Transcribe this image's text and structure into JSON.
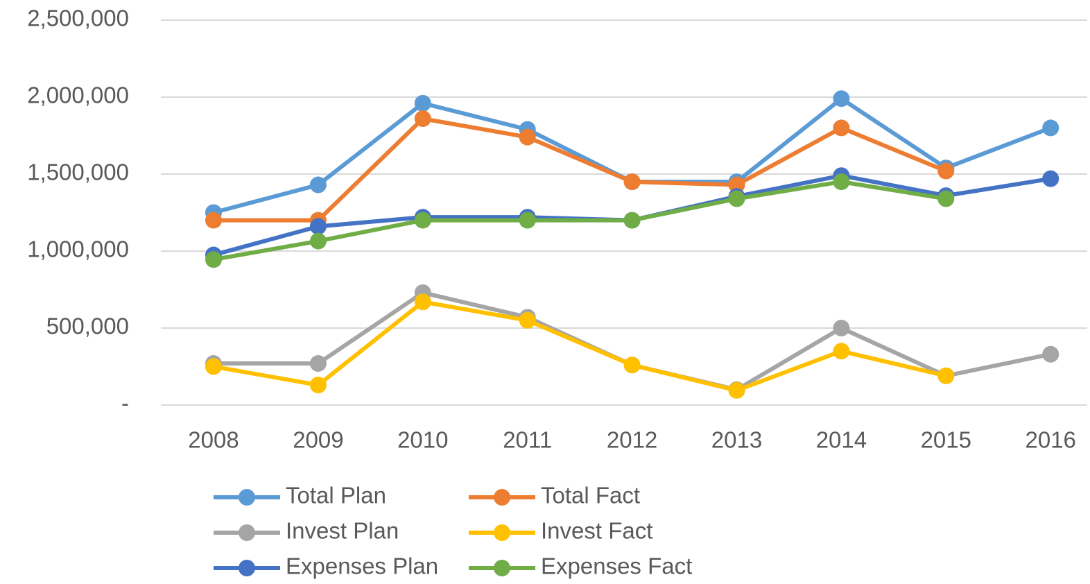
{
  "chart_data": {
    "type": "line",
    "categories": [
      "2008",
      "2009",
      "2010",
      "2011",
      "2012",
      "2013",
      "2014",
      "2015",
      "2016"
    ],
    "series": [
      {
        "name": "Total Plan",
        "color": "#5b9bd5",
        "values": [
          1250000,
          1430000,
          1960000,
          1790000,
          1450000,
          1450000,
          1990000,
          1540000,
          1800000
        ]
      },
      {
        "name": "Total Fact",
        "color": "#ed7d31",
        "values": [
          1200000,
          1200000,
          1860000,
          1740000,
          1450000,
          1430000,
          1800000,
          1520000,
          null
        ]
      },
      {
        "name": "Invest Plan",
        "color": "#a5a5a5",
        "values": [
          270000,
          270000,
          730000,
          570000,
          260000,
          100000,
          500000,
          190000,
          330000
        ]
      },
      {
        "name": "Invest Fact",
        "color": "#ffc000",
        "values": [
          250000,
          130000,
          670000,
          550000,
          260000,
          95000,
          350000,
          190000,
          null
        ]
      },
      {
        "name": "Expenses Plan",
        "color": "#4472c4",
        "values": [
          975000,
          1160000,
          1220000,
          1220000,
          1200000,
          1355000,
          1490000,
          1360000,
          1470000
        ]
      },
      {
        "name": "Expenses Fact",
        "color": "#70ad47",
        "values": [
          945000,
          1065000,
          1200000,
          1200000,
          1200000,
          1340000,
          1450000,
          1340000,
          null
        ]
      }
    ],
    "ylim": [
      0,
      2500000
    ],
    "yticks": [
      {
        "value": 0,
        "label": "-"
      },
      {
        "value": 500000,
        "label": "500,000"
      },
      {
        "value": 1000000,
        "label": "1,000,000"
      },
      {
        "value": 1500000,
        "label": "1,500,000"
      },
      {
        "value": 2000000,
        "label": "2,000,000"
      },
      {
        "value": 2500000,
        "label": "2,500,000"
      }
    ],
    "grid": true
  }
}
